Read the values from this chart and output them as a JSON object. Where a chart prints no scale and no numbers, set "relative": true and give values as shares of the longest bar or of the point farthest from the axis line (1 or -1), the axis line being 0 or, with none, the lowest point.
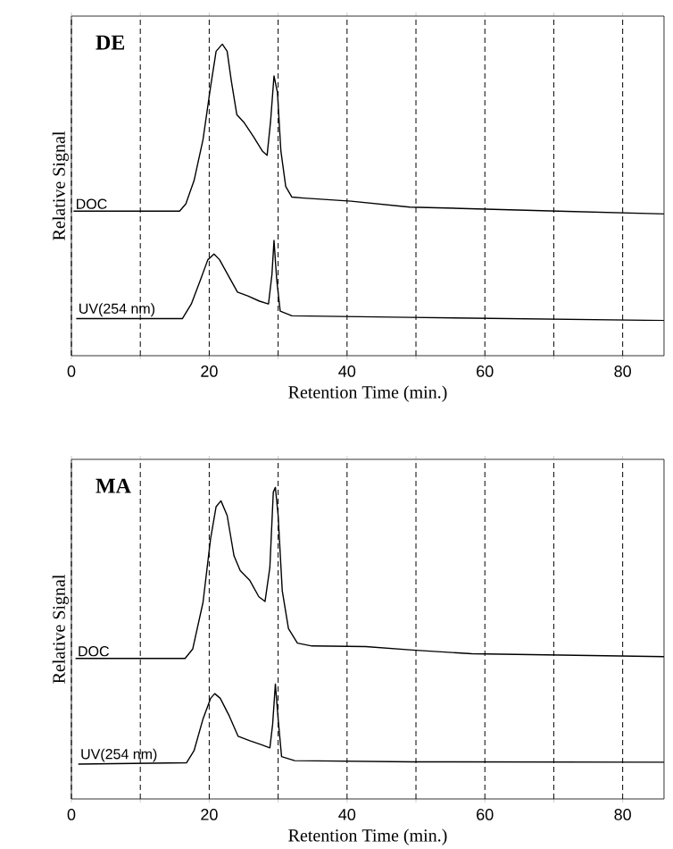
{
  "chart_data": [
    {
      "type": "line",
      "title": "DE",
      "xlabel": "Retention Time (min.)",
      "ylabel": "Relative Signal",
      "relative": true,
      "grid": "x",
      "xlim": [
        0,
        86
      ],
      "xticks": [
        0,
        {
          "value": 10,
          "label": null
        },
        20,
        {
          "value": 30,
          "label": null
        },
        40,
        {
          "value": 50,
          "label": null
        },
        60,
        {
          "value": 70,
          "label": null
        },
        80
      ],
      "series": [
        {
          "name": "DOC",
          "color": "#000000",
          "x": [
            0.3,
            15.7,
            16.6,
            17.8,
            19.1,
            20.2,
            21.0,
            21.9,
            22.6,
            23.2,
            24.0,
            25.1,
            26.4,
            27.7,
            28.4,
            28.9,
            29.4,
            29.9,
            30.4,
            31.1,
            32.0,
            33.7,
            40.6,
            49.1,
            57.7,
            70.6,
            86
          ],
          "values": [
            0.464,
            0.464,
            0.487,
            0.562,
            0.694,
            0.864,
            0.977,
            1.0,
            0.977,
            0.883,
            0.774,
            0.747,
            0.704,
            0.657,
            0.643,
            0.751,
            0.898,
            0.845,
            0.657,
            0.543,
            0.509,
            0.506,
            0.496,
            0.477,
            0.472,
            0.464,
            0.455
          ]
        },
        {
          "name": "UV(254 nm)",
          "color": "#000000",
          "x": [
            0.7,
            16.1,
            17.4,
            18.7,
            19.8,
            20.7,
            21.5,
            22.7,
            24.1,
            25.6,
            27.3,
            28.6,
            29.1,
            29.4,
            29.8,
            30.3,
            32.0,
            49.1,
            86
          ],
          "values": [
            0.119,
            0.119,
            0.166,
            0.242,
            0.308,
            0.326,
            0.308,
            0.26,
            0.204,
            0.192,
            0.175,
            0.166,
            0.26,
            0.37,
            0.242,
            0.143,
            0.128,
            0.123,
            0.113
          ]
        }
      ]
    },
    {
      "type": "line",
      "title": "MA",
      "xlabel": "Retention Time (min.)",
      "ylabel": "Relative Signal",
      "relative": true,
      "grid": "x",
      "xlim": [
        0,
        86
      ],
      "xticks": [
        0,
        {
          "value": 10,
          "label": null
        },
        20,
        {
          "value": 30,
          "label": null
        },
        40,
        {
          "value": 50,
          "label": null
        },
        60,
        {
          "value": 70,
          "label": null
        },
        80
      ],
      "series": [
        {
          "name": "DOC",
          "color": "#000000",
          "x": [
            0.6,
            16.5,
            17.6,
            19.1,
            20.2,
            21.0,
            21.7,
            22.6,
            23.6,
            24.5,
            25.9,
            27.2,
            28.1,
            28.8,
            29.3,
            29.6,
            30.0,
            30.6,
            31.5,
            32.8,
            34.9,
            42.7,
            49.5,
            58.1,
            86
          ],
          "values": [
            0.451,
            0.451,
            0.481,
            0.631,
            0.836,
            0.938,
            0.957,
            0.91,
            0.78,
            0.733,
            0.701,
            0.649,
            0.634,
            0.743,
            0.985,
            1.0,
            0.91,
            0.668,
            0.547,
            0.5,
            0.491,
            0.489,
            0.478,
            0.466,
            0.457
          ]
        },
        {
          "name": "UV(254 nm)",
          "color": "#000000",
          "x": [
            1.0,
            16.7,
            17.8,
            19.1,
            20.2,
            20.8,
            21.6,
            22.9,
            24.2,
            25.9,
            27.6,
            28.8,
            29.2,
            29.6,
            30.0,
            30.5,
            32.4,
            49.5,
            86
          ],
          "values": [
            0.112,
            0.116,
            0.155,
            0.257,
            0.323,
            0.338,
            0.323,
            0.267,
            0.201,
            0.187,
            0.174,
            0.164,
            0.239,
            0.369,
            0.257,
            0.136,
            0.123,
            0.119,
            0.118
          ]
        }
      ]
    }
  ]
}
